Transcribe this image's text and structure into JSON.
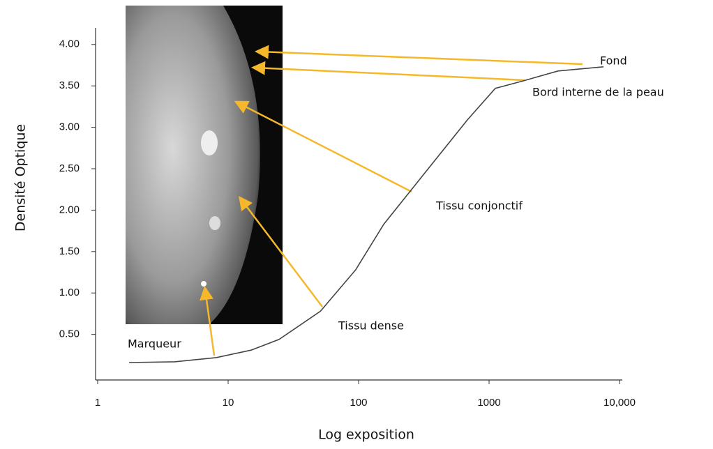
{
  "chart_data": {
    "type": "line",
    "x_label": "Log exposition",
    "y_label": "Densité Optique",
    "x": [
      1.74,
      3.9,
      8.1,
      15,
      24.6,
      51,
      95,
      156,
      255,
      417,
      683,
      1117,
      1828,
      3380,
      7540
    ],
    "values": [
      0.16,
      0.17,
      0.22,
      0.31,
      0.44,
      0.78,
      1.28,
      1.83,
      2.25,
      2.67,
      3.09,
      3.47,
      3.56,
      3.68,
      3.73
    ],
    "color": "#444444",
    "xscale": "log",
    "xlim": [
      1,
      10000
    ],
    "ylim": [
      -0.05,
      4.2
    ],
    "xticks": [
      1,
      10,
      100,
      1000,
      {
        "value": 10000,
        "label": "10,000"
      }
    ],
    "yticks": [
      {
        "value": 0.5,
        "label": "0.50"
      },
      {
        "value": 1,
        "label": "1.00"
      },
      {
        "value": 1.5,
        "label": "1.50"
      },
      {
        "value": 2,
        "label": "2.00"
      },
      {
        "value": 2.5,
        "label": "2.50"
      },
      {
        "value": 3,
        "label": "3.00"
      },
      {
        "value": 3.5,
        "label": "3.50"
      },
      {
        "value": 4,
        "label": "4.00"
      }
    ],
    "annotations": [
      "Fond",
      "Bord interne de la peau",
      "Tissu conjonctif",
      "Tissu dense",
      "Marqueur"
    ]
  }
}
